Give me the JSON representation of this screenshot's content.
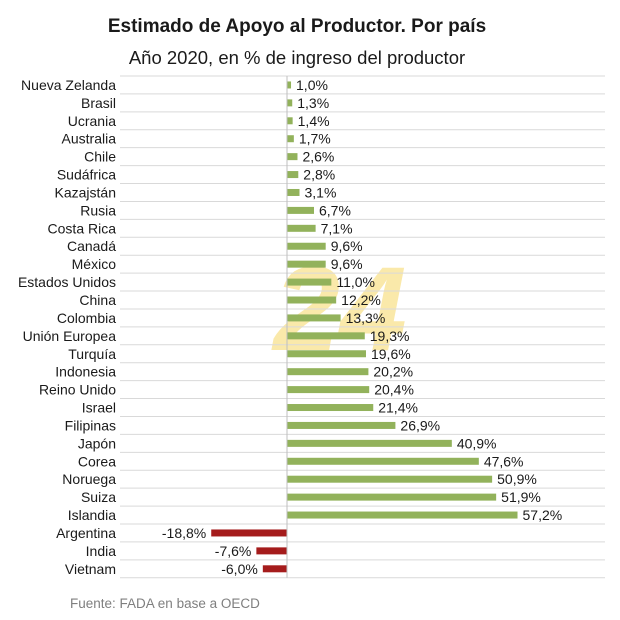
{
  "chart_data": {
    "type": "bar",
    "orientation": "horizontal",
    "title": "Estimado de Apoyo al Productor. Por país",
    "subtitle": "Año 2020, en % de ingreso del productor",
    "categories": [
      "Nueva Zelanda",
      "Brasil",
      "Ucrania",
      "Australia",
      "Chile",
      "Sudáfrica",
      "Kazajstán",
      "Rusia",
      "Costa Rica",
      "Canadá",
      "México",
      "Estados Unidos",
      "China",
      "Colombia",
      "Unión Europea",
      "Turquía",
      "Indonesia",
      "Reino Unido",
      "Israel",
      "Filipinas",
      "Japón",
      "Corea",
      "Noruega",
      "Suiza",
      "Islandia",
      "Argentina",
      "India",
      "Vietnam"
    ],
    "values": [
      1.0,
      1.3,
      1.4,
      1.7,
      2.6,
      2.8,
      3.1,
      6.7,
      7.1,
      9.6,
      9.6,
      11.0,
      12.2,
      13.3,
      19.3,
      19.6,
      20.2,
      20.4,
      21.4,
      26.9,
      40.9,
      47.6,
      50.9,
      51.9,
      57.2,
      -18.8,
      -7.6,
      -6.0
    ],
    "value_labels": [
      "1,0%",
      "1,3%",
      "1,4%",
      "1,7%",
      "2,6%",
      "2,8%",
      "3,1%",
      "6,7%",
      "7,1%",
      "9,6%",
      "9,6%",
      "11,0%",
      "12,2%",
      "13,3%",
      "19,3%",
      "19,6%",
      "20,2%",
      "20,4%",
      "21,4%",
      "26,9%",
      "40,9%",
      "47,6%",
      "50,9%",
      "51,9%",
      "57,2%",
      "-18,8%",
      "-7,6%",
      "-6,0%"
    ],
    "xlabel": "",
    "ylabel": "",
    "grid": true,
    "colors": {
      "positive": "#92b25b",
      "negative": "#a51c1c",
      "grid": "#d9d9d9",
      "axis": "#bfbfbf"
    },
    "source": "Fuente: FADA en base a OECD",
    "watermark": "24"
  }
}
